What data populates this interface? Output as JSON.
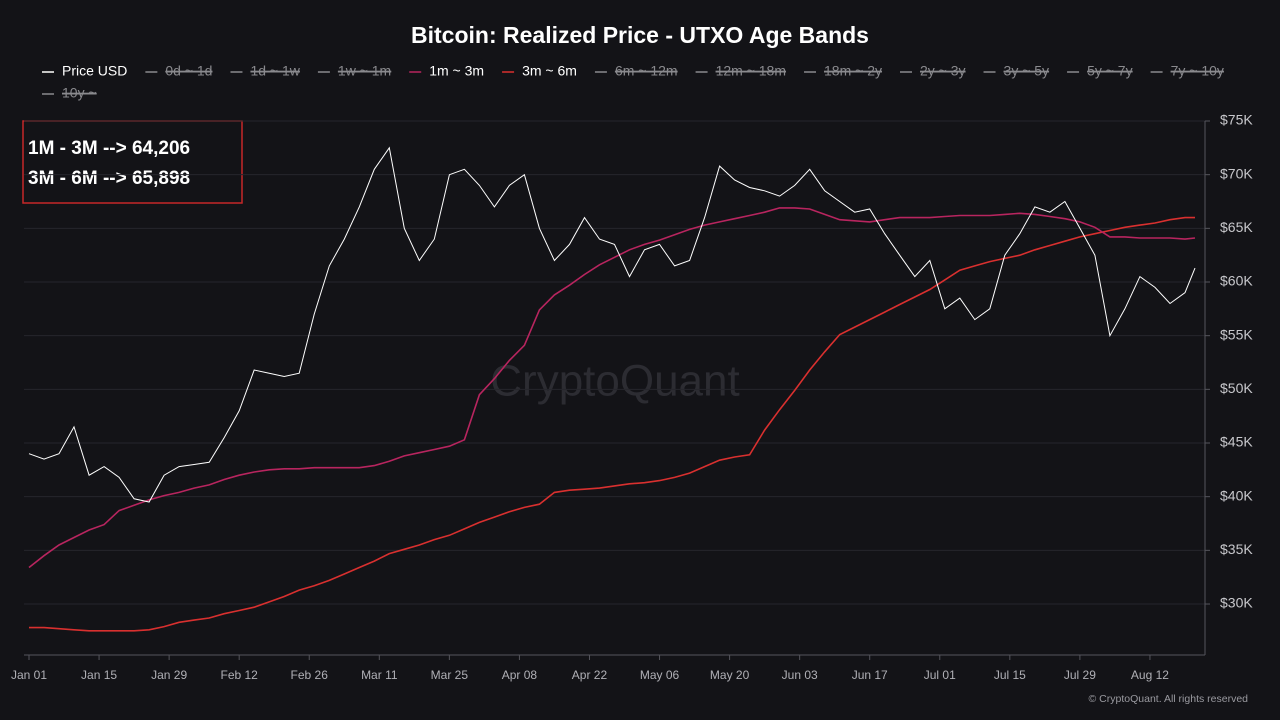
{
  "chart_data": {
    "type": "line",
    "title": "Bitcoin: Realized Price - UTXO Age Bands",
    "annotations": [
      "1M - 3M --> 64,206",
      "3M - 6M --> 65,898"
    ],
    "watermark": "CryptoQuant",
    "footer": "© CryptoQuant. All rights reserved",
    "grid": true,
    "x": [
      0,
      3,
      6,
      9,
      12,
      15,
      18,
      21,
      24,
      27,
      30,
      33,
      36,
      39,
      42,
      45,
      48,
      51,
      54,
      57,
      60,
      63,
      66,
      69,
      72,
      75,
      78,
      81,
      84,
      87,
      90,
      93,
      96,
      99,
      102,
      105,
      108,
      111,
      114,
      117,
      120,
      123,
      126,
      129,
      132,
      135,
      138,
      141,
      144,
      147,
      150,
      153,
      156,
      159,
      162,
      165,
      168,
      171,
      174,
      177,
      180,
      183,
      186,
      189,
      192,
      195,
      198,
      201,
      204,
      207,
      210,
      213,
      216,
      219,
      222,
      225,
      228,
      231,
      233
    ],
    "xlim": [
      -1,
      235
    ],
    "xticks": [
      {
        "value": 0,
        "label": "Jan 01"
      },
      {
        "value": 14,
        "label": "Jan 15"
      },
      {
        "value": 28,
        "label": "Jan 29"
      },
      {
        "value": 42,
        "label": "Feb 12"
      },
      {
        "value": 56,
        "label": "Feb 26"
      },
      {
        "value": 70,
        "label": "Mar 11"
      },
      {
        "value": 84,
        "label": "Mar 25"
      },
      {
        "value": 98,
        "label": "Apr 08"
      },
      {
        "value": 112,
        "label": "Apr 22"
      },
      {
        "value": 126,
        "label": "May 06"
      },
      {
        "value": 140,
        "label": "May 20"
      },
      {
        "value": 154,
        "label": "Jun 03"
      },
      {
        "value": 168,
        "label": "Jun 17"
      },
      {
        "value": 182,
        "label": "Jul 01"
      },
      {
        "value": 196,
        "label": "Jul 15"
      },
      {
        "value": 210,
        "label": "Jul 29"
      },
      {
        "value": 224,
        "label": "Aug 12"
      }
    ],
    "ylim": [
      25250,
      75000
    ],
    "yticks": [
      {
        "value": 30000,
        "label": "$30K"
      },
      {
        "value": 35000,
        "label": "$35K"
      },
      {
        "value": 40000,
        "label": "$40K"
      },
      {
        "value": 45000,
        "label": "$45K"
      },
      {
        "value": 50000,
        "label": "$50K"
      },
      {
        "value": 55000,
        "label": "$55K"
      },
      {
        "value": 60000,
        "label": "$60K"
      },
      {
        "value": 65000,
        "label": "$65K"
      },
      {
        "value": 70000,
        "label": "$70K"
      },
      {
        "value": 75000,
        "label": "$75K"
      }
    ],
    "series": [
      {
        "name": "Price USD",
        "color": "#ffffff",
        "visible": true,
        "values": [
          44000,
          43500,
          44000,
          46500,
          42000,
          42800,
          41800,
          39800,
          39500,
          42000,
          42800,
          43000,
          43200,
          45500,
          48000,
          51800,
          51500,
          51200,
          51500,
          57000,
          61500,
          64000,
          67000,
          70500,
          72500,
          65000,
          62000,
          64000,
          70000,
          70500,
          69000,
          67000,
          69000,
          70000,
          65000,
          62000,
          63500,
          66000,
          64000,
          63500,
          60500,
          63000,
          63500,
          61500,
          62000,
          66000,
          70800,
          69500,
          68800,
          68500,
          68000,
          69000,
          70500,
          68500,
          67500,
          66500,
          66800,
          64500,
          62500,
          60500,
          62000,
          57500,
          58500,
          56500,
          57500,
          62500,
          64500,
          67000,
          66500,
          67500,
          65000,
          62500,
          55000,
          57500,
          60500,
          59500,
          58000,
          59000,
          61300
        ]
      },
      {
        "name": "0d ~ 1d",
        "color": "#8a8a8e",
        "visible": false
      },
      {
        "name": "1d ~ 1w",
        "color": "#8a8a8e",
        "visible": false
      },
      {
        "name": "1w ~ 1m",
        "color": "#8a8a8e",
        "visible": false
      },
      {
        "name": "1m ~ 3m",
        "color": "#b8255f",
        "visible": true,
        "values": [
          33400,
          34500,
          35500,
          36200,
          36900,
          37400,
          38700,
          39200,
          39700,
          40100,
          40400,
          40800,
          41100,
          41600,
          42000,
          42300,
          42500,
          42600,
          42600,
          42700,
          42700,
          42700,
          42700,
          42900,
          43300,
          43800,
          44100,
          44400,
          44700,
          45300,
          49500,
          51000,
          52700,
          54100,
          57400,
          58800,
          59700,
          60700,
          61600,
          62300,
          63000,
          63500,
          63900,
          64400,
          64900,
          65300,
          65600,
          65900,
          66200,
          66500,
          66900,
          66900,
          66800,
          66300,
          65800,
          65700,
          65600,
          65800,
          66000,
          66000,
          66000,
          66100,
          66200,
          66200,
          66200,
          66300,
          66400,
          66300,
          66100,
          65900,
          65600,
          65100,
          64200,
          64200,
          64100,
          64100,
          64100,
          64000,
          64100
        ]
      },
      {
        "name": "3m ~ 6m",
        "color": "#d9302f",
        "visible": true,
        "values": [
          27800,
          27800,
          27700,
          27600,
          27500,
          27500,
          27500,
          27500,
          27600,
          27900,
          28300,
          28500,
          28700,
          29100,
          29400,
          29700,
          30200,
          30700,
          31300,
          31700,
          32200,
          32800,
          33400,
          34000,
          34700,
          35100,
          35500,
          36000,
          36400,
          37000,
          37600,
          38100,
          38600,
          39000,
          39300,
          40400,
          40600,
          40700,
          40800,
          41000,
          41200,
          41300,
          41500,
          41800,
          42200,
          42800,
          43400,
          43700,
          43900,
          46200,
          48100,
          49900,
          51800,
          53500,
          55100,
          55800,
          56500,
          57200,
          57900,
          58600,
          59300,
          60200,
          61100,
          61500,
          61900,
          62200,
          62500,
          63000,
          63400,
          63800,
          64200,
          64500,
          64800,
          65100,
          65300,
          65500,
          65800,
          66000,
          66000
        ]
      },
      {
        "name": "6m ~ 12m",
        "color": "#8a8a8e",
        "visible": false
      },
      {
        "name": "12m ~ 18m",
        "color": "#8a8a8e",
        "visible": false
      },
      {
        "name": "18m ~ 2y",
        "color": "#8a8a8e",
        "visible": false
      },
      {
        "name": "2y ~ 3y",
        "color": "#8a8a8e",
        "visible": false
      },
      {
        "name": "3y ~ 5y",
        "color": "#8a8a8e",
        "visible": false
      },
      {
        "name": "5y ~ 7y",
        "color": "#8a8a8e",
        "visible": false
      },
      {
        "name": "7y ~ 10y",
        "color": "#8a8a8e",
        "visible": false
      },
      {
        "name": "10y ~",
        "color": "#8a8a8e",
        "visible": false
      }
    ]
  }
}
